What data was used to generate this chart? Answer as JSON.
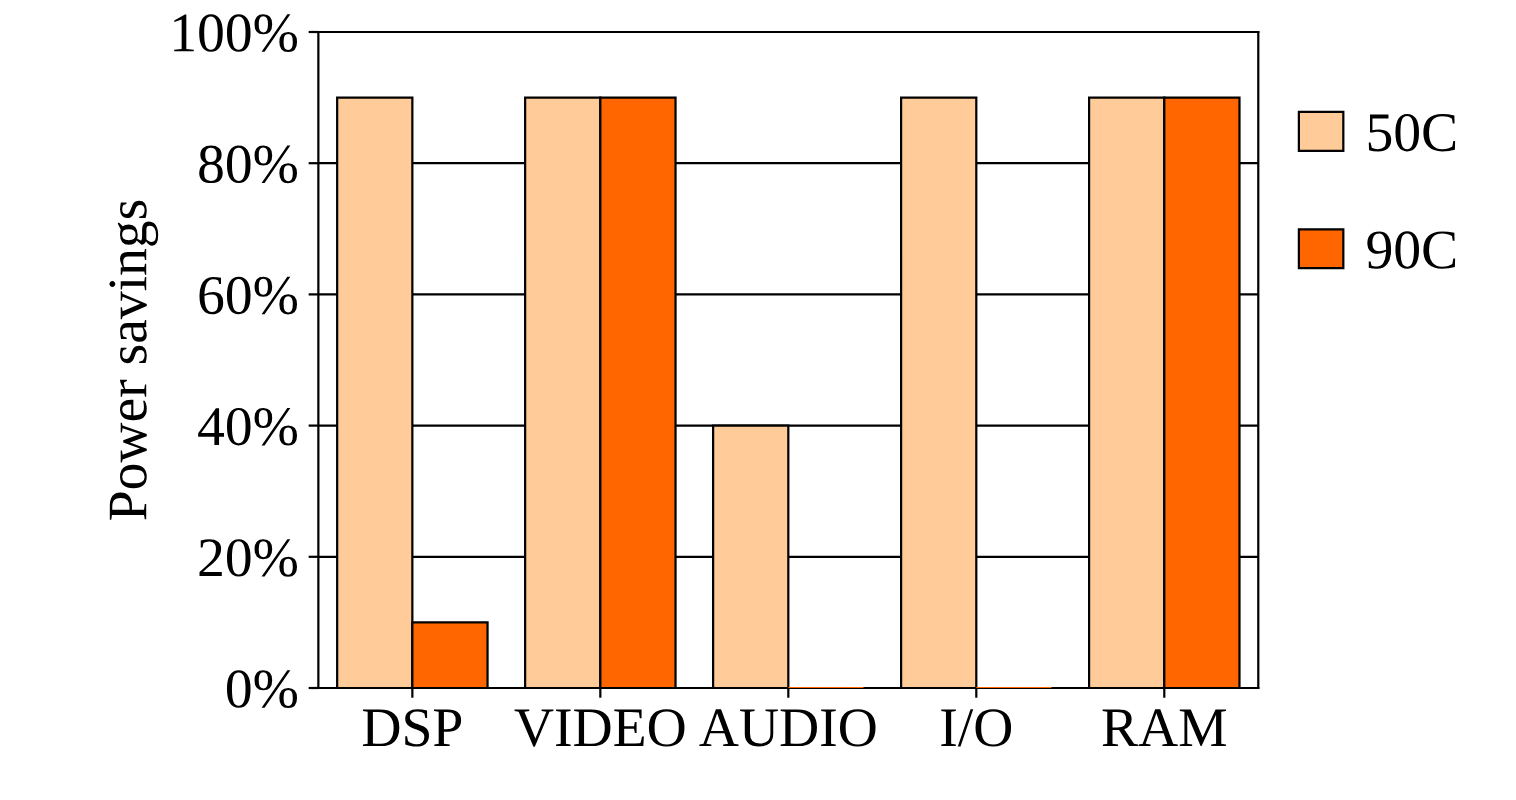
{
  "chart_data": {
    "type": "bar",
    "ylabel": "Power savings",
    "categories": [
      "DSP",
      "VIDEO",
      "AUDIO",
      "I/O",
      "RAM"
    ],
    "series": [
      {
        "name": "50C",
        "color": "#ffcc99",
        "values": [
          90,
          90,
          40,
          90,
          90
        ]
      },
      {
        "name": "90C",
        "color": "#ff6600",
        "values": [
          10,
          90,
          0,
          0,
          90
        ]
      }
    ],
    "ylim": [
      0,
      100
    ],
    "yticks": [
      {
        "value": 0,
        "label": "0%"
      },
      {
        "value": 20,
        "label": "20%"
      },
      {
        "value": 40,
        "label": "40%"
      },
      {
        "value": 60,
        "label": "60%"
      },
      {
        "value": 80,
        "label": "80%"
      },
      {
        "value": 100,
        "label": "100%"
      }
    ],
    "grid": "y",
    "legend": "right"
  }
}
